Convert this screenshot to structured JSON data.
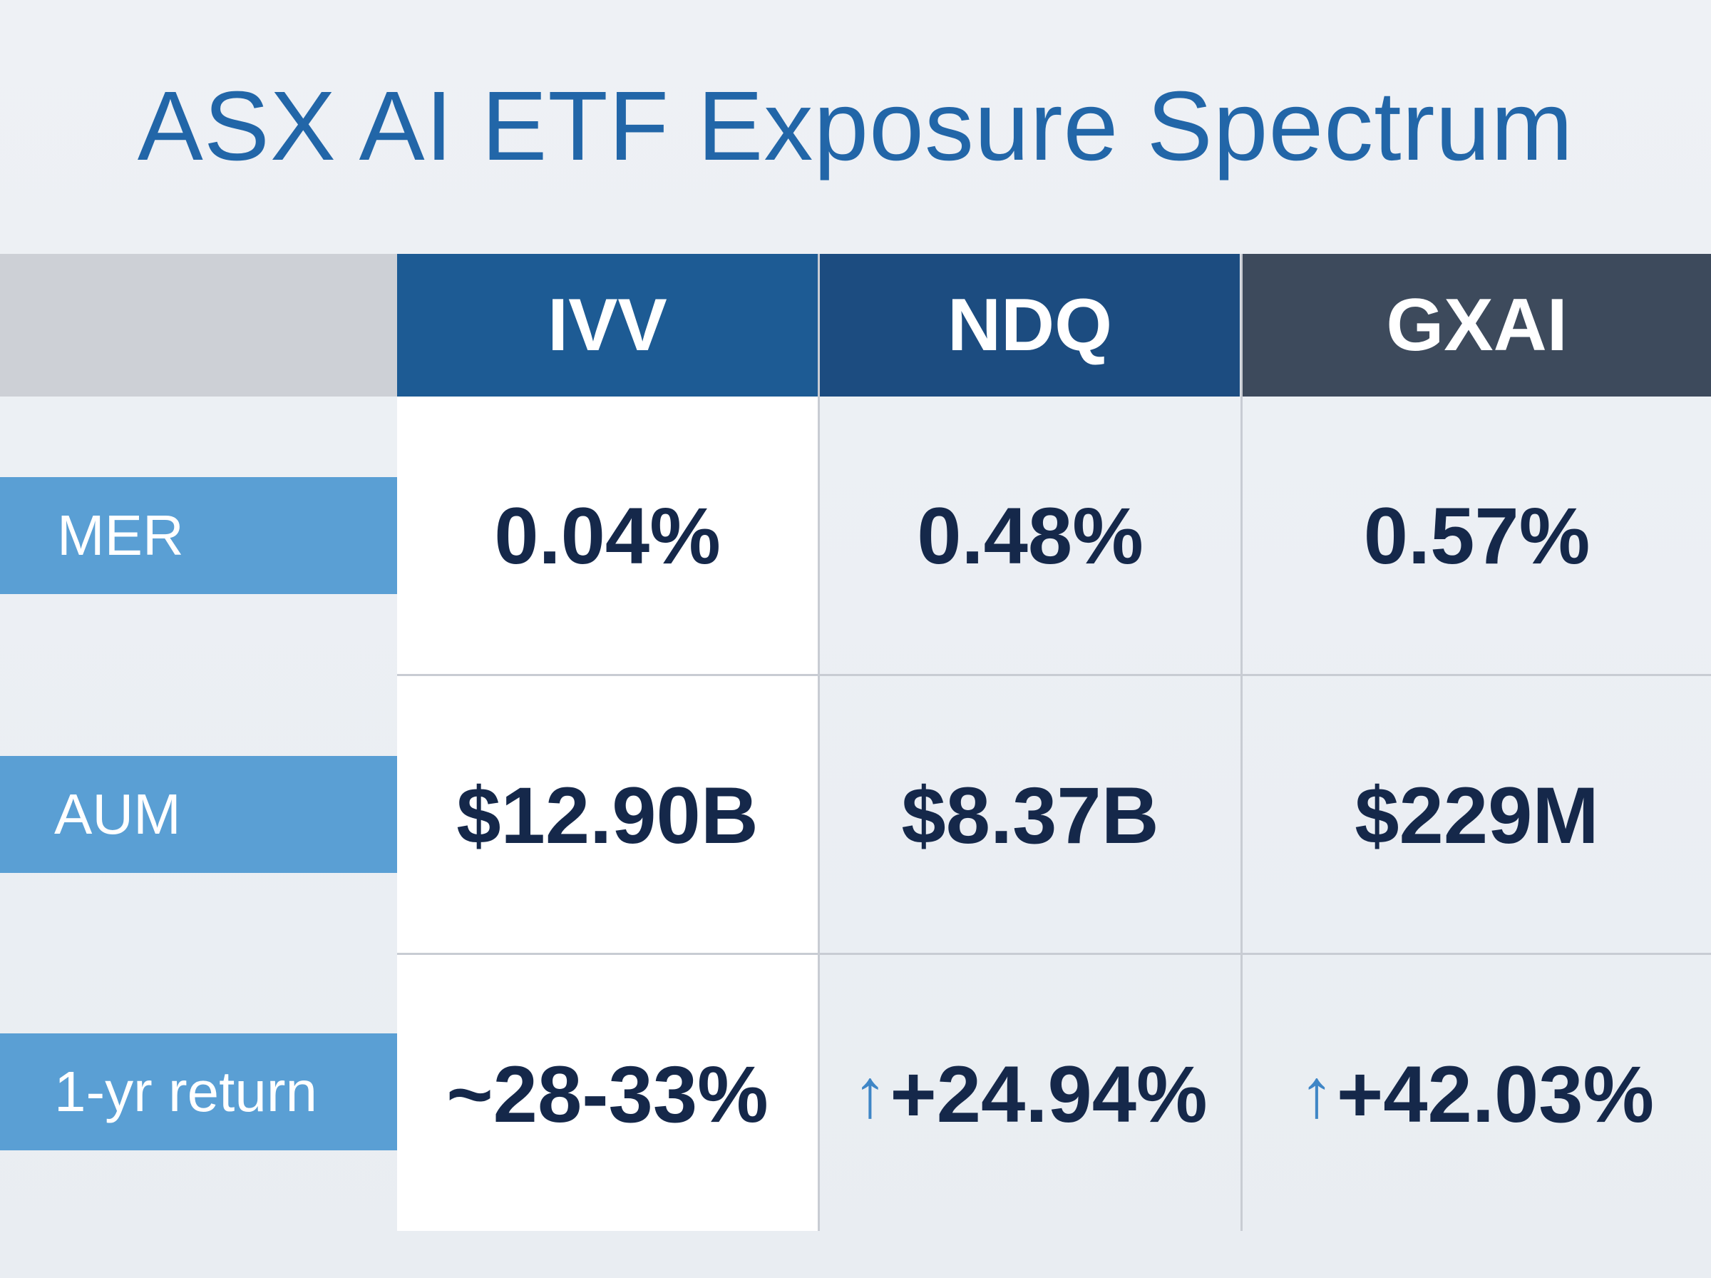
{
  "title": "ASX AI ETF Exposure Spectrum",
  "chart_data": {
    "type": "table",
    "columns": [
      "IVV",
      "NDQ",
      "GXAI"
    ],
    "rows": [
      {
        "label": "MER",
        "values": [
          "0.04%",
          "0.48%",
          "0.57%"
        ],
        "arrows": [
          false,
          false,
          false
        ]
      },
      {
        "label": "AUM",
        "values": [
          "$12.90B",
          "$8.37B",
          "$229M"
        ],
        "arrows": [
          false,
          false,
          false
        ]
      },
      {
        "label": "1-yr return",
        "values": [
          "~28-33%",
          "+24.94%",
          "+42.03%"
        ],
        "arrows": [
          false,
          true,
          true
        ]
      }
    ]
  },
  "icons": {
    "up_arrow": "up-arrow-icon"
  },
  "colors": {
    "title": "#2266a8",
    "ivv_header": "#1d5b94",
    "ndq_header": "#1c4c80",
    "gxai_header": "#3d4a5c",
    "row_label": "#5a9fd4",
    "value_text": "#15284a",
    "arrow": "#3f86c6"
  }
}
